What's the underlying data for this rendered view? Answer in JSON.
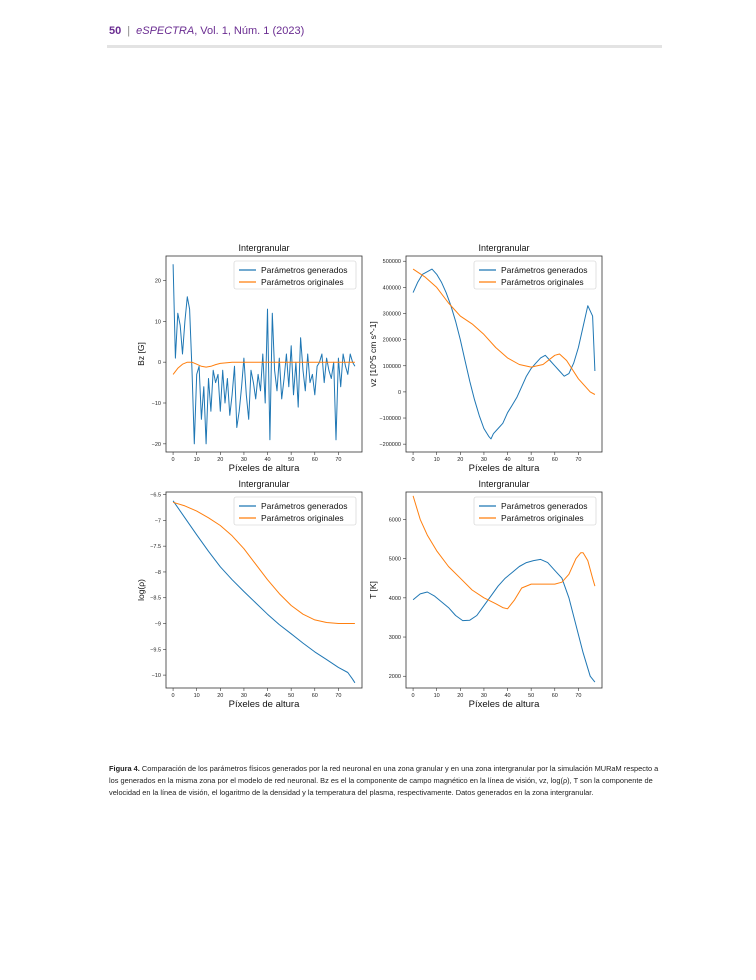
{
  "header": {
    "page": "50",
    "separator": "|",
    "journal": "eSPECTRA",
    "volume": ", Vol. 1, Núm. 1 (2023)"
  },
  "caption": {
    "label": "Figura 4.",
    "text": " Comparación de los parámetros físicos generados por la red neuronal en una zona granular y en una zona intergranular por la simulación MURaM respecto a los generados en la misma zona por el modelo de red neuronal. Bz es el la componente de campo magnético en la línea de visión, vz, log(ρ), T son la componente de velocidad en la línea de visión, el logaritmo de la densidad y la temperatura del plasma, respectivamente. Datos generados en la zona intergranular."
  },
  "colors": {
    "generated": "#1f77b4",
    "original": "#ff7f0e",
    "purple": "#6a2c91"
  },
  "chart_data": [
    {
      "type": "line",
      "title": "Intergranular",
      "xlabel": "Píxeles de altura",
      "ylabel": "Bz [G]",
      "xlim": [
        -3,
        80
      ],
      "ylim": [
        -22,
        26
      ],
      "xticks": [
        0,
        10,
        20,
        30,
        40,
        50,
        60,
        70
      ],
      "yticks": [
        -20,
        -10,
        0,
        10,
        20
      ],
      "legend": "upper-right",
      "series": [
        {
          "name": "Parámetros generados",
          "color": "#1f77b4",
          "x": [
            0,
            1,
            2,
            3,
            4,
            5,
            6,
            7,
            8,
            9,
            10,
            11,
            12,
            13,
            14,
            15,
            16,
            17,
            18,
            19,
            20,
            21,
            22,
            23,
            24,
            25,
            26,
            27,
            28,
            29,
            30,
            31,
            32,
            33,
            34,
            35,
            36,
            37,
            38,
            39,
            40,
            41,
            42,
            43,
            44,
            45,
            46,
            47,
            48,
            49,
            50,
            51,
            52,
            53,
            54,
            55,
            56,
            57,
            58,
            59,
            60,
            61,
            62,
            63,
            64,
            65,
            66,
            67,
            68,
            69,
            70,
            71,
            72,
            73,
            74,
            75,
            76,
            77
          ],
          "y": [
            24,
            1,
            12,
            9,
            2,
            10,
            16,
            13,
            -2,
            -20,
            -3,
            -1,
            -14,
            -6,
            -20,
            -4,
            -12,
            -2,
            -5,
            -3,
            -12,
            -2,
            -10,
            -4,
            -13,
            -8,
            -1,
            -16,
            -12,
            -6,
            1,
            -8,
            -14,
            -2,
            -5,
            -9,
            -3,
            -7,
            2,
            -10,
            13,
            -19,
            12,
            -2,
            -7,
            1,
            -9,
            -4,
            2,
            -6,
            4,
            -8,
            0,
            -11,
            6,
            -2,
            -7,
            2,
            -5,
            -3,
            -8,
            -1,
            0,
            2,
            -5,
            1,
            -2,
            -4,
            0,
            -19,
            1,
            -6,
            2,
            -1,
            -3,
            2,
            0,
            -1
          ]
        },
        {
          "name": "Parámetros originales",
          "color": "#ff7f0e",
          "x": [
            0,
            2,
            4,
            6,
            8,
            10,
            12,
            14,
            16,
            18,
            20,
            25,
            30,
            35,
            40,
            45,
            50,
            55,
            60,
            65,
            70,
            75,
            77
          ],
          "y": [
            -3,
            -1.5,
            -0.5,
            0,
            0,
            -0.5,
            -1,
            -1.2,
            -1,
            -0.6,
            -0.3,
            0,
            0,
            0,
            0,
            0,
            0,
            0,
            0,
            0,
            0,
            0,
            0
          ]
        }
      ]
    },
    {
      "type": "line",
      "title": "Intergranular",
      "xlabel": "Píxeles de altura",
      "ylabel": "vz [10^5 cm s^-1]",
      "xlim": [
        -3,
        80
      ],
      "ylim": [
        -230000,
        520000
      ],
      "xticks": [
        0,
        10,
        20,
        30,
        40,
        50,
        60,
        70
      ],
      "yticks": [
        -200000,
        -100000,
        0,
        100000,
        200000,
        300000,
        400000,
        500000
      ],
      "legend": "upper-right",
      "series": [
        {
          "name": "Parámetros generados",
          "color": "#1f77b4",
          "x": [
            0,
            2,
            4,
            6,
            8,
            10,
            12,
            14,
            16,
            18,
            20,
            22,
            24,
            26,
            28,
            30,
            32,
            33,
            34,
            36,
            38,
            40,
            42,
            44,
            46,
            48,
            50,
            52,
            54,
            56,
            58,
            60,
            62,
            64,
            66,
            68,
            70,
            72,
            74,
            76,
            77
          ],
          "y": [
            380000,
            420000,
            450000,
            460000,
            470000,
            450000,
            420000,
            380000,
            330000,
            270000,
            200000,
            120000,
            40000,
            -30000,
            -90000,
            -140000,
            -170000,
            -180000,
            -160000,
            -140000,
            -120000,
            -80000,
            -50000,
            -20000,
            20000,
            60000,
            90000,
            110000,
            130000,
            140000,
            120000,
            100000,
            80000,
            60000,
            70000,
            110000,
            170000,
            250000,
            330000,
            290000,
            80000
          ]
        },
        {
          "name": "Parámetros originales",
          "color": "#ff7f0e",
          "x": [
            0,
            5,
            10,
            15,
            20,
            25,
            30,
            35,
            40,
            45,
            50,
            55,
            60,
            62,
            65,
            70,
            75,
            77
          ],
          "y": [
            470000,
            440000,
            400000,
            340000,
            290000,
            260000,
            220000,
            170000,
            130000,
            105000,
            95000,
            105000,
            140000,
            145000,
            120000,
            50000,
            0,
            -10000
          ]
        }
      ]
    },
    {
      "type": "line",
      "title": "Intergranular",
      "xlabel": "Píxeles de altura",
      "ylabel": "log(ρ)",
      "xlim": [
        -3,
        80
      ],
      "ylim": [
        -10.25,
        -6.45
      ],
      "xticks": [
        0,
        10,
        20,
        30,
        40,
        50,
        60,
        70
      ],
      "yticks": [
        -6.5,
        -7.0,
        -7.5,
        -8.0,
        -8.5,
        -9.0,
        -9.5,
        -10.0
      ],
      "legend": "upper-right",
      "series": [
        {
          "name": "Parámetros generados",
          "color": "#1f77b4",
          "x": [
            0,
            5,
            10,
            15,
            20,
            25,
            30,
            35,
            40,
            45,
            50,
            55,
            60,
            65,
            70,
            74,
            76,
            77
          ],
          "y": [
            -6.62,
            -6.95,
            -7.28,
            -7.6,
            -7.9,
            -8.15,
            -8.38,
            -8.6,
            -8.82,
            -9.02,
            -9.2,
            -9.38,
            -9.55,
            -9.7,
            -9.85,
            -9.95,
            -10.08,
            -10.15
          ]
        },
        {
          "name": "Parámetros originales",
          "color": "#ff7f0e",
          "x": [
            0,
            5,
            10,
            15,
            20,
            25,
            30,
            35,
            40,
            45,
            50,
            55,
            60,
            65,
            70,
            72,
            75,
            77
          ],
          "y": [
            -6.65,
            -6.72,
            -6.82,
            -6.95,
            -7.1,
            -7.3,
            -7.55,
            -7.85,
            -8.15,
            -8.42,
            -8.65,
            -8.82,
            -8.93,
            -8.98,
            -9.0,
            -9.0,
            -9.0,
            -9.0
          ]
        }
      ]
    },
    {
      "type": "line",
      "title": "Intergranular",
      "xlabel": "Píxeles de altura",
      "ylabel": "T [K]",
      "xlim": [
        -3,
        80
      ],
      "ylim": [
        1700,
        6700
      ],
      "xticks": [
        0,
        10,
        20,
        30,
        40,
        50,
        60,
        70
      ],
      "yticks": [
        2000,
        3000,
        4000,
        5000,
        6000
      ],
      "legend": "upper-right",
      "series": [
        {
          "name": "Parámetros generados",
          "color": "#1f77b4",
          "x": [
            0,
            3,
            6,
            9,
            12,
            15,
            18,
            21,
            24,
            27,
            30,
            33,
            36,
            39,
            42,
            45,
            48,
            51,
            54,
            57,
            60,
            63,
            66,
            69,
            72,
            75,
            77
          ],
          "y": [
            3950,
            4100,
            4150,
            4050,
            3900,
            3750,
            3550,
            3420,
            3430,
            3550,
            3800,
            4050,
            4300,
            4500,
            4650,
            4800,
            4900,
            4950,
            4980,
            4900,
            4700,
            4500,
            4000,
            3300,
            2600,
            2000,
            1850
          ]
        },
        {
          "name": "Parámetros originales",
          "color": "#ff7f0e",
          "x": [
            0,
            3,
            6,
            10,
            15,
            20,
            25,
            30,
            35,
            38,
            40,
            43,
            46,
            50,
            55,
            60,
            63,
            66,
            69,
            71,
            72,
            74,
            76,
            77
          ],
          "y": [
            6600,
            6000,
            5600,
            5200,
            4800,
            4500,
            4200,
            4000,
            3850,
            3750,
            3720,
            3950,
            4250,
            4350,
            4350,
            4350,
            4400,
            4600,
            5000,
            5150,
            5150,
            4950,
            4500,
            4300
          ]
        }
      ]
    }
  ]
}
